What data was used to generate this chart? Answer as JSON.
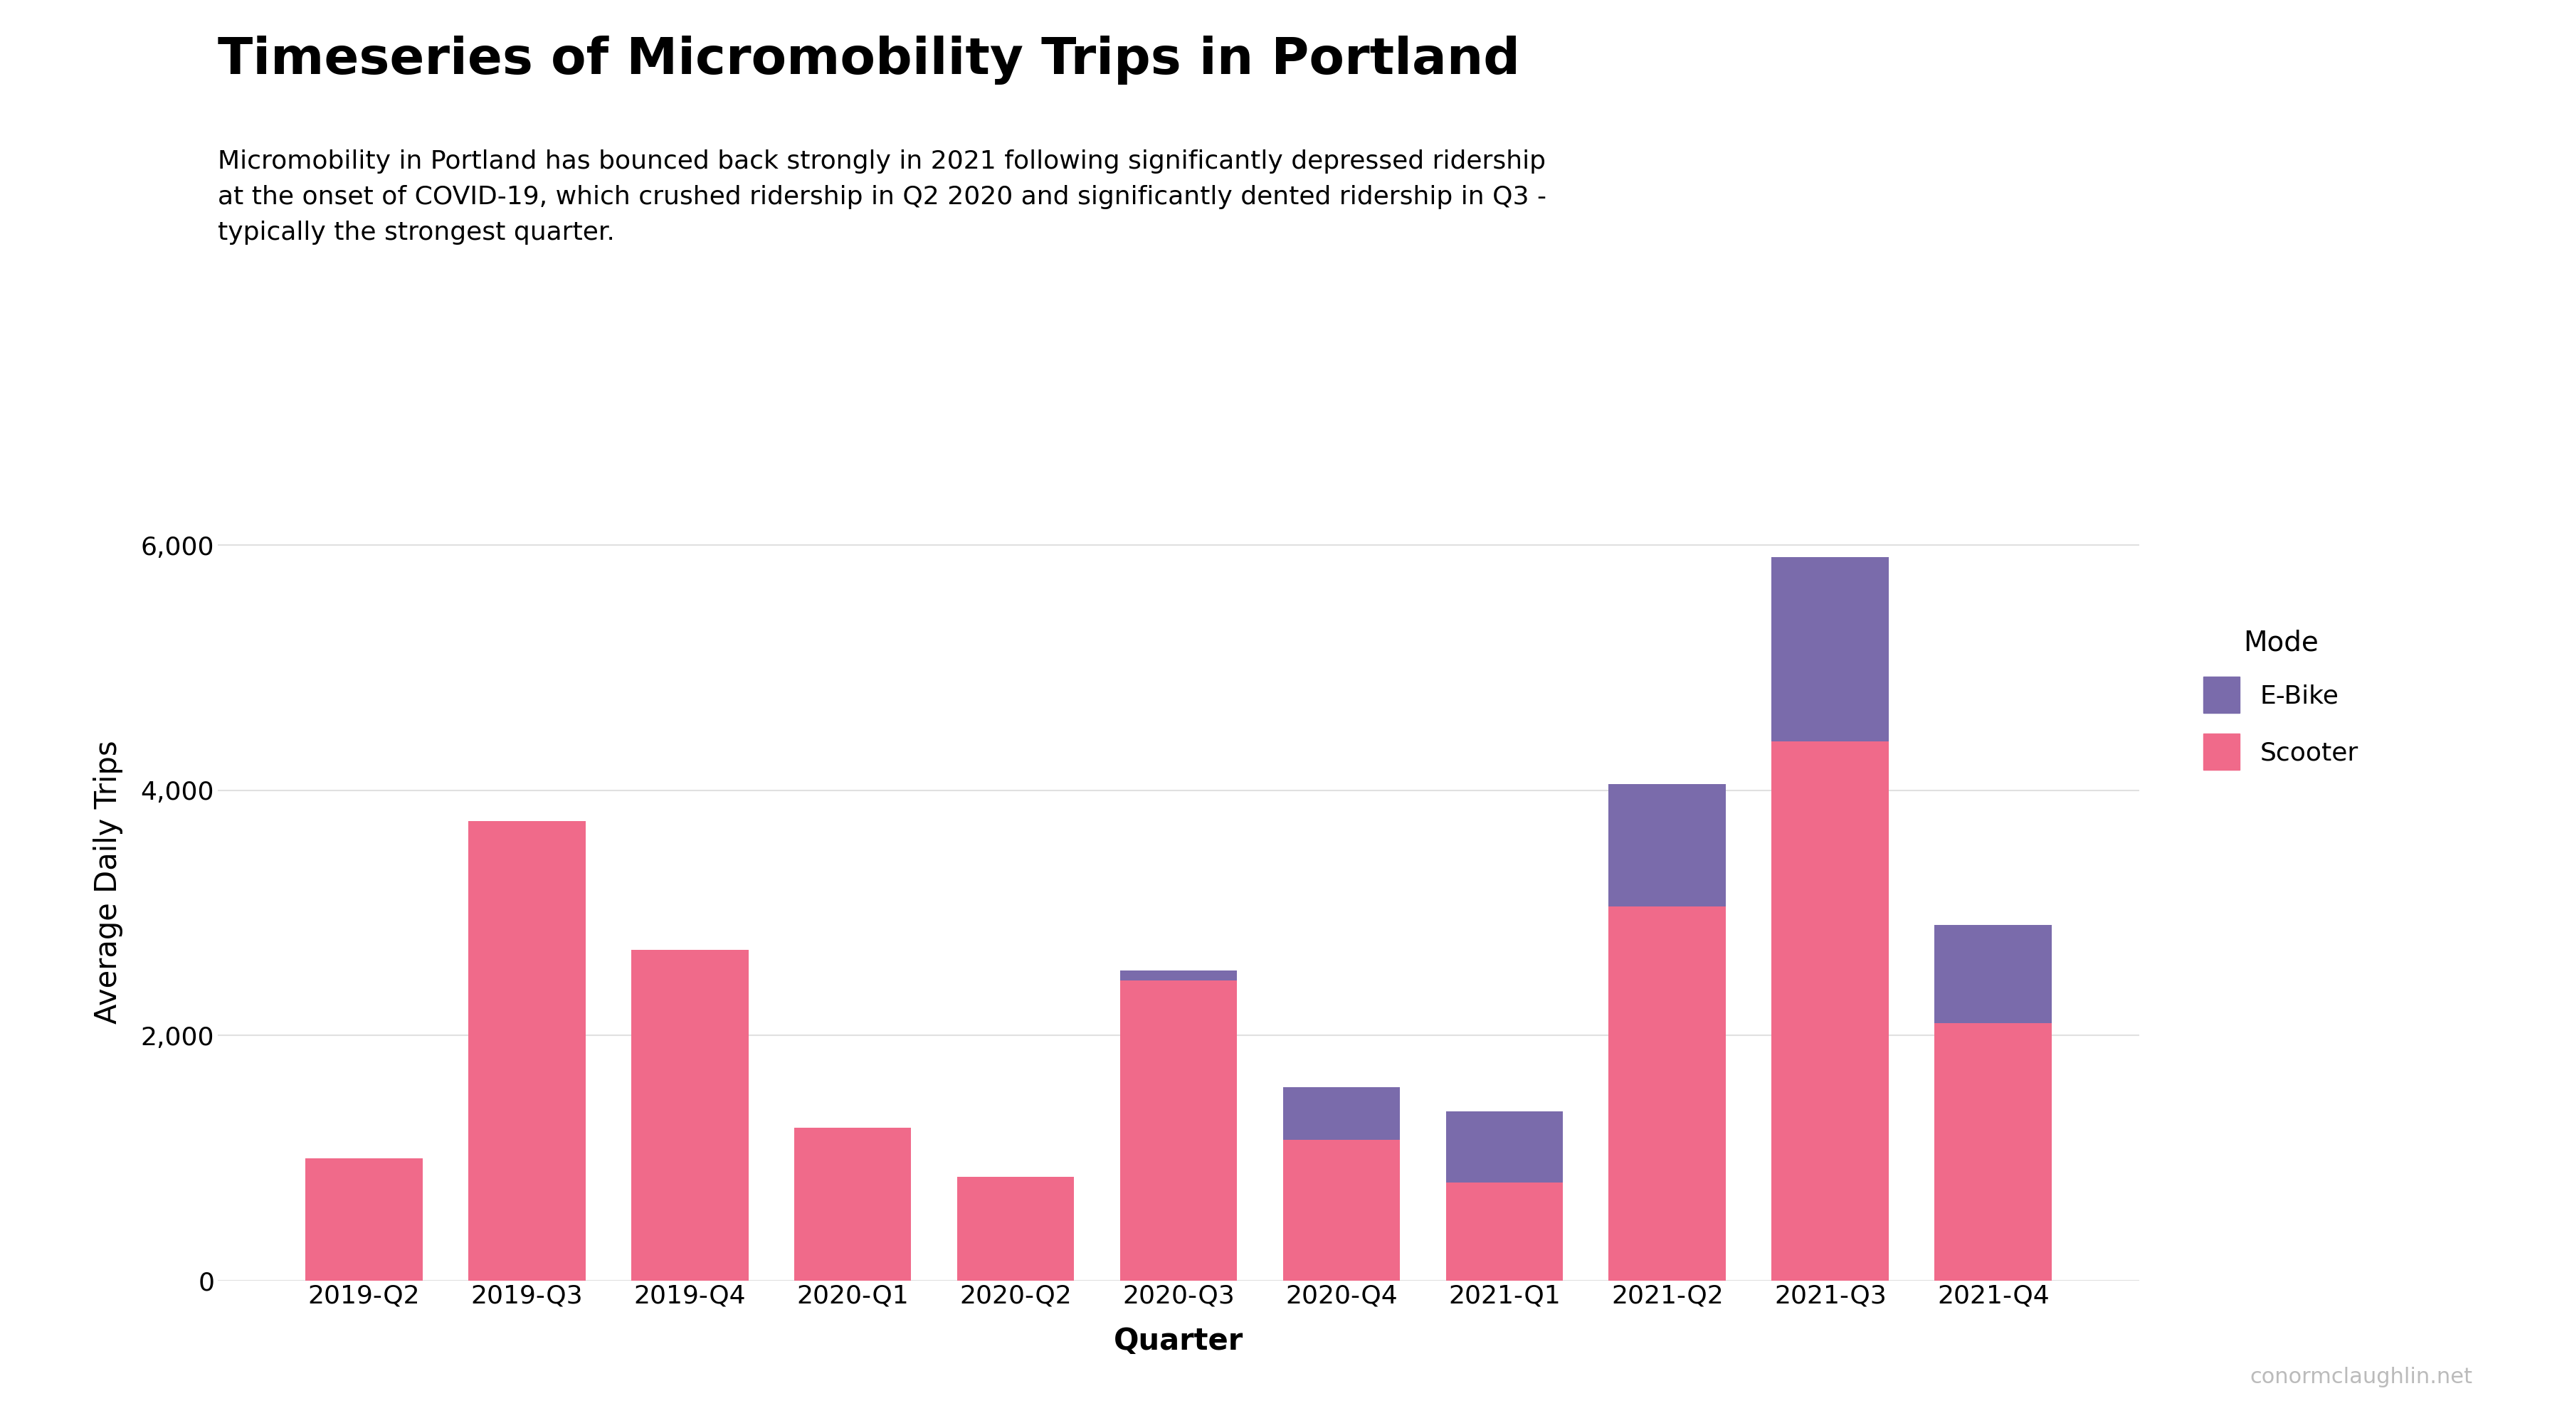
{
  "title": "Timeseries of Micromobility Trips in Portland",
  "subtitle": "Micromobility in Portland has bounced back strongly in 2021 following significantly depressed ridership\nat the onset of COVID-19, which crushed ridership in Q2 2020 and significantly dented ridership in Q3 -\ntypically the strongest quarter.",
  "xlabel": "Quarter",
  "ylabel": "Average Daily Trips",
  "watermark": "conormclaughlin.net",
  "categories": [
    "2019-Q2",
    "2019-Q3",
    "2019-Q4",
    "2020-Q1",
    "2020-Q2",
    "2020-Q3",
    "2020-Q4",
    "2021-Q1",
    "2021-Q2",
    "2021-Q3",
    "2021-Q4"
  ],
  "scooter": [
    1000,
    3750,
    2700,
    1250,
    850,
    2450,
    1150,
    800,
    3050,
    4400,
    2100
  ],
  "ebike": [
    0,
    0,
    0,
    0,
    0,
    80,
    430,
    580,
    1000,
    1500,
    800
  ],
  "scooter_color": "#F06A8A",
  "ebike_color": "#7A6BAB",
  "background_color": "#FFFFFF",
  "grid_color": "#E0E0E0",
  "ylim": [
    0,
    6500
  ],
  "yticks": [
    0,
    2000,
    4000,
    6000
  ],
  "title_fontsize": 52,
  "subtitle_fontsize": 26,
  "axis_label_fontsize": 30,
  "tick_fontsize": 26,
  "legend_title_fontsize": 28,
  "legend_fontsize": 26,
  "watermark_fontsize": 22
}
